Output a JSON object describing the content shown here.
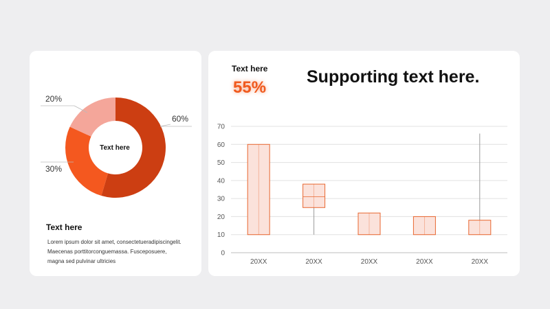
{
  "left_card": {
    "donut_center_label": "Text here",
    "title": "Text here",
    "body": "Lorem ipsum dolor sit amet, consectetueradipiscingelit. Maecenas porttitorconguemassa. Fusceposuere, magna sed pulvinar ultricies"
  },
  "right_card": {
    "kpi_label": "Text here",
    "kpi_value": "55%",
    "headline": "Supporting text here."
  },
  "colors": {
    "accent": "#f05a1e",
    "dark_orange": "#cc3e12",
    "light_salmon": "#f4a69a",
    "box_fill": "#fbe2db",
    "box_stroke": "#e8662f"
  },
  "chart_data": [
    {
      "type": "pie",
      "subtype": "donut",
      "center_label": "Text here",
      "slices": [
        {
          "label": "60%",
          "value": 60,
          "color": "#cc3e12"
        },
        {
          "label": "30%",
          "value": 30,
          "color": "#f4581f"
        },
        {
          "label": "20%",
          "value": 20,
          "color": "#f4a69a"
        }
      ]
    },
    {
      "type": "box",
      "categories": [
        "20XX",
        "20XX",
        "20XX",
        "20XX",
        "20XX"
      ],
      "boxes": [
        {
          "low": 10,
          "high": 60,
          "mid": 60,
          "whisker_low": 10,
          "whisker_high": 60
        },
        {
          "low": 25,
          "high": 38,
          "mid": 31,
          "whisker_low": 10,
          "whisker_high": 38
        },
        {
          "low": 10,
          "high": 22,
          "mid": 22,
          "whisker_low": 10,
          "whisker_high": 22
        },
        {
          "low": 10,
          "high": 20,
          "mid": 20,
          "whisker_low": 10,
          "whisker_high": 20
        },
        {
          "low": 10,
          "high": 18,
          "mid": 18,
          "whisker_low": 10,
          "whisker_high": 66
        }
      ],
      "yticks": [
        "0",
        "10",
        "20",
        "30",
        "40",
        "50",
        "60",
        "70"
      ],
      "ylim": [
        0,
        70
      ],
      "grid": true
    }
  ]
}
